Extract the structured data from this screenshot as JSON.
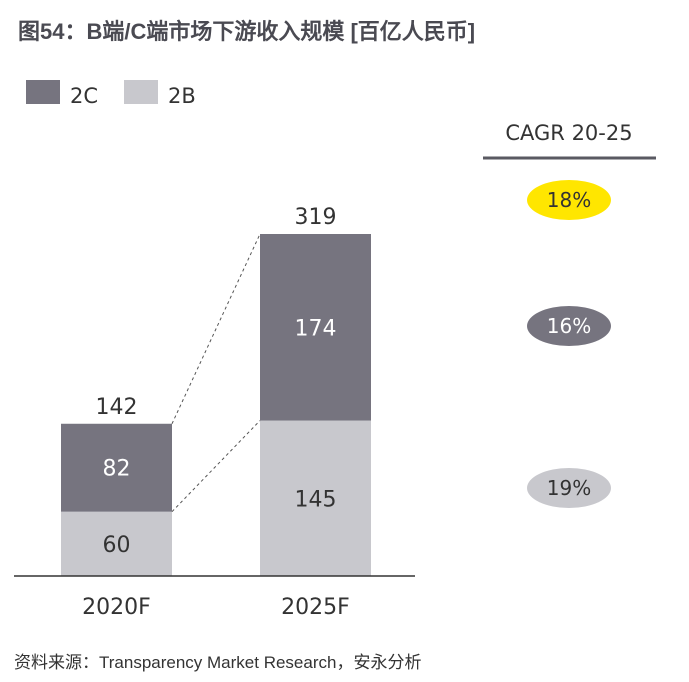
{
  "title": "图54：B端/C端市场下游收入规模 [百亿人民币]",
  "source": "资料来源：Transparency Market Research，安永分析",
  "colors": {
    "2C": "#76747f",
    "2B": "#c8c8cd",
    "highlight": "#ffe600",
    "axis": "#333333"
  },
  "chart_data": {
    "type": "bar",
    "stacked": true,
    "categories": [
      "2020F",
      "2025F"
    ],
    "series": [
      {
        "name": "2B",
        "values": [
          60,
          145
        ]
      },
      {
        "name": "2C",
        "values": [
          82,
          174
        ]
      }
    ],
    "totals": [
      142,
      319
    ],
    "legend": [
      "2C",
      "2B"
    ],
    "legend_position": "top-left",
    "ylim": [
      0,
      319
    ],
    "grid": false,
    "cagr": {
      "header": "CAGR 20-25",
      "total": "18%",
      "2C": "16%",
      "2B": "19%"
    }
  }
}
